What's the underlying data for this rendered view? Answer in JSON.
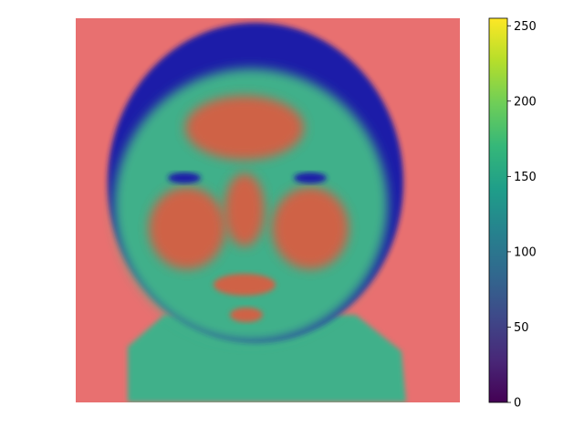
{
  "chart_data": {
    "type": "heatmap",
    "title": "",
    "xlabel": "",
    "ylabel": "",
    "axes_visible": false,
    "image_description_semantic": "face-heatmap-overlay",
    "overlay": {
      "background_color": "#e87070",
      "low_value_color": "#1b1ea8",
      "mid_value_color": "#41b08a",
      "high_value_color": "#e8553a"
    },
    "colorbar": {
      "colormap": "viridis",
      "vmin": 0,
      "vmax": 255,
      "ticks": [
        0,
        50,
        100,
        150,
        200,
        250
      ],
      "tick_labels": [
        "0",
        "50",
        "100",
        "150",
        "200",
        "250"
      ],
      "colors": [
        "#440154",
        "#482878",
        "#3e4989",
        "#31688e",
        "#26828e",
        "#1f9e89",
        "#35b779",
        "#6ece58",
        "#b5de2b",
        "#fde725"
      ]
    }
  }
}
